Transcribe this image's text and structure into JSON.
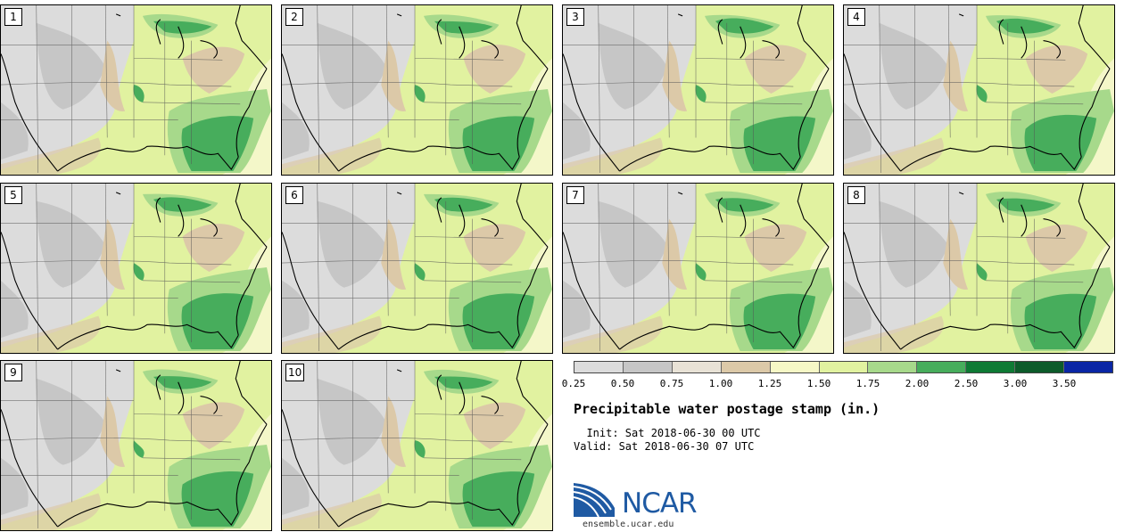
{
  "panels": [
    {
      "label": "1"
    },
    {
      "label": "2"
    },
    {
      "label": "3"
    },
    {
      "label": "4"
    },
    {
      "label": "5"
    },
    {
      "label": "6"
    },
    {
      "label": "7"
    },
    {
      "label": "8"
    },
    {
      "label": "9"
    },
    {
      "label": "10"
    }
  ],
  "colorbar": {
    "ticks": [
      "0.25",
      "0.50",
      "0.75",
      "1.00",
      "1.25",
      "1.50",
      "1.75",
      "2.00",
      "2.50",
      "3.00",
      "3.50"
    ],
    "colors": [
      "#dcdcdc",
      "#c6c6c6",
      "#e8e2d6",
      "#dcc9a8",
      "#f6f8c6",
      "#e1f2a0",
      "#a7d98b",
      "#47ad5c",
      "#0e7a34",
      "#0c5b2a",
      "#0a26a5"
    ]
  },
  "title": "Precipitable water postage stamp (in.)",
  "init": "  Init: Sat 2018-06-30 00 UTC",
  "valid": "Valid: Sat 2018-06-30 07 UTC",
  "logo": {
    "name": "NCAR",
    "site": "ensemble.ucar.edu"
  },
  "map_colors": {
    "ocean": "#f4f7c9",
    "gray_light": "#dcdcdc",
    "gray": "#c6c6c6",
    "tan": "#dcc9a8",
    "lightgreen": "#e1f2a0",
    "midgreen": "#a7d98b",
    "green": "#47ad5c",
    "darkgreen": "#0e7a34"
  }
}
